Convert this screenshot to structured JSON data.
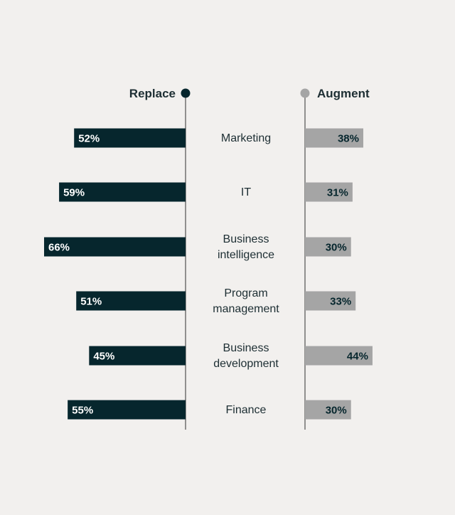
{
  "chart_data": {
    "type": "bar",
    "title": "",
    "categories": [
      "Marketing",
      "IT",
      "Business intelligence",
      "Program management",
      "Business development",
      "Finance"
    ],
    "category_lines": [
      [
        "Marketing"
      ],
      [
        "IT"
      ],
      [
        "Business",
        "intelligence"
      ],
      [
        "Program",
        "management"
      ],
      [
        "Business",
        "development"
      ],
      [
        "Finance"
      ]
    ],
    "series": [
      {
        "name": "Replace",
        "values": [
          52,
          59,
          66,
          51,
          45,
          55
        ],
        "labels": [
          "52%",
          "59%",
          "66%",
          "51%",
          "45%",
          "55%"
        ],
        "color": "#06262d",
        "label_color": "#ffffff"
      },
      {
        "name": "Augment",
        "values": [
          38,
          31,
          30,
          33,
          44,
          30
        ],
        "labels": [
          "38%",
          "31%",
          "30%",
          "33%",
          "44%",
          "30%"
        ],
        "color": "#a5a5a5",
        "label_color": "#06262d"
      }
    ],
    "colors": {
      "background": "#f2f0ee",
      "text": "#1d2e33",
      "axis": "#6f6f6f",
      "augment_marker": "#a5a5a5",
      "replace_marker": "#06262d"
    }
  }
}
